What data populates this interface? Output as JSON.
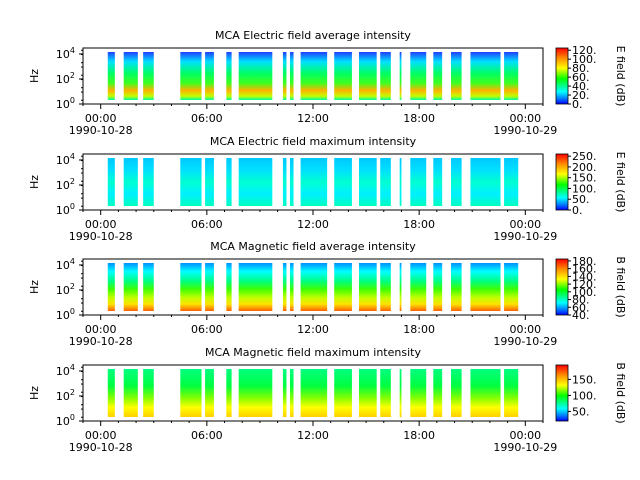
{
  "chart_data": [
    {
      "type": "heatmap",
      "title": "MCA  Electric field average intensity",
      "ylabel": "Hz",
      "y_scale": "log",
      "ylim": [
        1,
        30000
      ],
      "y_ticks": [
        {
          "value": 1,
          "base": "10",
          "exp": "0"
        },
        {
          "value": 100,
          "base": "10",
          "exp": "2"
        },
        {
          "value": 10000,
          "base": "10",
          "exp": "4"
        }
      ],
      "x_ticks": [
        {
          "hour": 0,
          "time": "00:00",
          "date": "1990-10-28"
        },
        {
          "hour": 6,
          "time": "06:00",
          "date": ""
        },
        {
          "hour": 12,
          "time": "12:00",
          "date": ""
        },
        {
          "hour": 18,
          "time": "18:00",
          "date": ""
        },
        {
          "hour": 24,
          "time": "00:00",
          "date": "1990-10-29"
        }
      ],
      "xlim_hours": [
        -1,
        25
      ],
      "colorbar": {
        "label": "E field (dB)",
        "min": 0,
        "max": 125,
        "ticks": [
          "0.",
          "20.",
          "40.",
          "60.",
          "80.",
          "100.",
          "120."
        ],
        "tick_values": [
          0,
          20,
          40,
          60,
          80,
          100,
          120
        ]
      },
      "data_intervals_hours": [
        [
          0.4,
          0.8
        ],
        [
          1.3,
          2.1
        ],
        [
          2.4,
          3.0
        ],
        [
          4.5,
          5.7
        ],
        [
          5.9,
          6.4
        ],
        [
          7.1,
          7.4
        ],
        [
          7.8,
          9.7
        ],
        [
          10.3,
          10.5
        ],
        [
          10.7,
          10.9
        ],
        [
          11.3,
          12.8
        ],
        [
          13.2,
          14.2
        ],
        [
          14.6,
          15.6
        ],
        [
          15.8,
          16.4
        ],
        [
          16.9,
          17.0
        ],
        [
          17.5,
          18.4
        ],
        [
          18.8,
          19.3
        ],
        [
          19.8,
          20.4
        ],
        [
          20.9,
          22.6
        ],
        [
          22.8,
          23.6
        ]
      ]
    },
    {
      "type": "heatmap",
      "title": "MCA  Electric field maximum intensity",
      "ylabel": "Hz",
      "y_scale": "log",
      "ylim": [
        1,
        30000
      ],
      "y_ticks": [
        {
          "value": 1,
          "base": "10",
          "exp": "0"
        },
        {
          "value": 100,
          "base": "10",
          "exp": "2"
        },
        {
          "value": 10000,
          "base": "10",
          "exp": "4"
        }
      ],
      "x_ticks": [
        {
          "hour": 0,
          "time": "00:00",
          "date": "1990-10-28"
        },
        {
          "hour": 6,
          "time": "06:00",
          "date": ""
        },
        {
          "hour": 12,
          "time": "12:00",
          "date": ""
        },
        {
          "hour": 18,
          "time": "18:00",
          "date": ""
        },
        {
          "hour": 24,
          "time": "00:00",
          "date": "1990-10-29"
        }
      ],
      "xlim_hours": [
        -1,
        25
      ],
      "colorbar": {
        "label": "E field (dB)",
        "min": 0,
        "max": 260,
        "ticks": [
          "0.",
          "50.",
          "100.",
          "150.",
          "200.",
          "250."
        ],
        "tick_values": [
          0,
          50,
          100,
          150,
          200,
          250
        ]
      },
      "data_intervals_hours": [
        [
          0.4,
          0.8
        ],
        [
          1.3,
          2.1
        ],
        [
          2.4,
          3.0
        ],
        [
          4.5,
          5.7
        ],
        [
          5.9,
          6.4
        ],
        [
          7.1,
          7.4
        ],
        [
          7.8,
          9.7
        ],
        [
          10.3,
          10.5
        ],
        [
          10.7,
          10.9
        ],
        [
          11.3,
          12.8
        ],
        [
          13.2,
          14.2
        ],
        [
          14.6,
          15.6
        ],
        [
          15.8,
          16.4
        ],
        [
          16.9,
          17.0
        ],
        [
          17.5,
          18.4
        ],
        [
          18.8,
          19.3
        ],
        [
          19.8,
          20.4
        ],
        [
          20.9,
          22.6
        ],
        [
          22.8,
          23.6
        ]
      ]
    },
    {
      "type": "heatmap",
      "title": "MCA  Magnetic field average intensity",
      "ylabel": "Hz",
      "y_scale": "log",
      "ylim": [
        1,
        30000
      ],
      "y_ticks": [
        {
          "value": 1,
          "base": "10",
          "exp": "0"
        },
        {
          "value": 100,
          "base": "10",
          "exp": "2"
        },
        {
          "value": 10000,
          "base": "10",
          "exp": "4"
        }
      ],
      "x_ticks": [
        {
          "hour": 0,
          "time": "00:00",
          "date": "1990-10-28"
        },
        {
          "hour": 6,
          "time": "06:00",
          "date": ""
        },
        {
          "hour": 12,
          "time": "12:00",
          "date": ""
        },
        {
          "hour": 18,
          "time": "18:00",
          "date": ""
        },
        {
          "hour": 24,
          "time": "00:00",
          "date": "1990-10-29"
        }
      ],
      "xlim_hours": [
        -1,
        25
      ],
      "colorbar": {
        "label": "B field (dB)",
        "min": 40,
        "max": 185,
        "ticks": [
          "40.",
          "60.",
          "80.",
          "100.",
          "120.",
          "140.",
          "160.",
          "180."
        ],
        "tick_values": [
          40,
          60,
          80,
          100,
          120,
          140,
          160,
          180
        ]
      },
      "data_intervals_hours": [
        [
          0.4,
          0.8
        ],
        [
          1.3,
          2.1
        ],
        [
          2.4,
          3.0
        ],
        [
          4.5,
          5.7
        ],
        [
          5.9,
          6.4
        ],
        [
          7.1,
          7.4
        ],
        [
          7.8,
          9.7
        ],
        [
          10.3,
          10.5
        ],
        [
          10.7,
          10.9
        ],
        [
          11.3,
          12.8
        ],
        [
          13.2,
          14.2
        ],
        [
          14.6,
          15.6
        ],
        [
          15.8,
          16.4
        ],
        [
          16.9,
          17.0
        ],
        [
          17.5,
          18.4
        ],
        [
          18.8,
          19.3
        ],
        [
          19.8,
          20.4
        ],
        [
          20.9,
          22.6
        ],
        [
          22.8,
          23.6
        ]
      ]
    },
    {
      "type": "heatmap",
      "title": "MCA  Magnetic field maximum intensity",
      "ylabel": "Hz",
      "y_scale": "log",
      "ylim": [
        1,
        30000
      ],
      "y_ticks": [
        {
          "value": 1,
          "base": "10",
          "exp": "0"
        },
        {
          "value": 100,
          "base": "10",
          "exp": "2"
        },
        {
          "value": 10000,
          "base": "10",
          "exp": "4"
        }
      ],
      "x_ticks": [
        {
          "hour": 0,
          "time": "00:00",
          "date": "1990-10-28"
        },
        {
          "hour": 6,
          "time": "06:00",
          "date": ""
        },
        {
          "hour": 12,
          "time": "12:00",
          "date": ""
        },
        {
          "hour": 18,
          "time": "18:00",
          "date": ""
        },
        {
          "hour": 24,
          "time": "00:00",
          "date": "1990-10-29"
        }
      ],
      "xlim_hours": [
        -1,
        25
      ],
      "colorbar": {
        "label": "B field (dB)",
        "min": 20,
        "max": 195,
        "ticks": [
          "50.",
          "100.",
          "150."
        ],
        "tick_values": [
          50,
          100,
          150
        ]
      },
      "data_intervals_hours": [
        [
          0.4,
          0.8
        ],
        [
          1.3,
          2.1
        ],
        [
          2.4,
          3.0
        ],
        [
          4.5,
          5.7
        ],
        [
          5.9,
          6.4
        ],
        [
          7.1,
          7.4
        ],
        [
          7.8,
          9.7
        ],
        [
          10.3,
          10.5
        ],
        [
          10.7,
          10.9
        ],
        [
          11.3,
          12.8
        ],
        [
          13.2,
          14.2
        ],
        [
          14.6,
          15.6
        ],
        [
          15.8,
          16.4
        ],
        [
          16.9,
          17.0
        ],
        [
          17.5,
          18.4
        ],
        [
          18.8,
          19.3
        ],
        [
          19.8,
          20.4
        ],
        [
          20.9,
          22.6
        ],
        [
          22.8,
          23.6
        ]
      ]
    }
  ]
}
